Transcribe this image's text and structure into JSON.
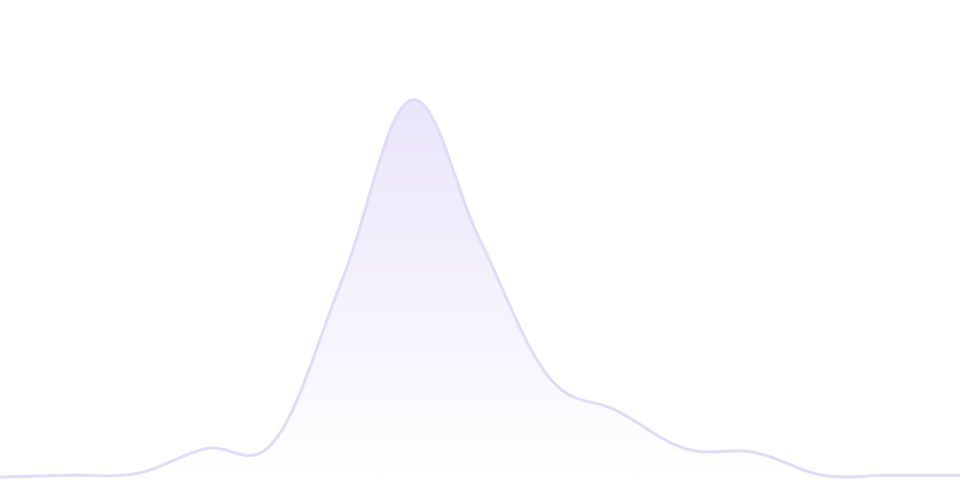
{
  "chart_data": {
    "type": "area",
    "x": [
      0,
      1,
      2,
      3,
      4,
      5,
      6,
      7,
      8,
      9,
      10,
      11,
      12,
      13,
      14
    ],
    "values": [
      0.5,
      1,
      1.5,
      8,
      10,
      53,
      100,
      63,
      27,
      18,
      8,
      7,
      1,
      1,
      1
    ],
    "ylim": [
      0,
      100
    ],
    "grid": false,
    "axes_visible": false,
    "smooth": true,
    "colors": {
      "line": "#e0dcf8",
      "fill_top": "#e9e5fa",
      "fill_bottom": "#ffffff"
    }
  }
}
